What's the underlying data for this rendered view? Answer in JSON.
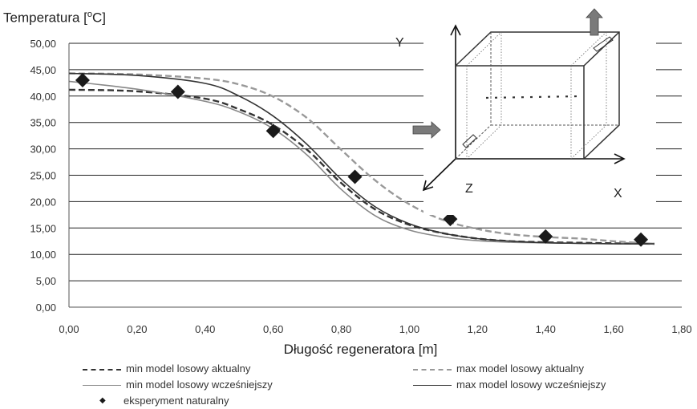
{
  "chart_data": {
    "type": "line",
    "ylabel": "Temperatura [",
    "ylabel_sup": "o",
    "ylabel_suffix": "C]",
    "xlabel": "Długość regeneratora [m]",
    "xlim": [
      0,
      1.8
    ],
    "ylim": [
      0,
      50
    ],
    "grid": "horizontal",
    "legend_position": "bottom",
    "x_ticks": [
      "0,00",
      "0,20",
      "0,40",
      "0,60",
      "0,80",
      "1,00",
      "1,20",
      "1,40",
      "1,60",
      "1,80"
    ],
    "y_ticks": [
      "0,00",
      "5,00",
      "10,00",
      "15,00",
      "20,00",
      "25,00",
      "30,00",
      "35,00",
      "40,00",
      "45,00",
      "50,00"
    ],
    "series": [
      {
        "name": "min model losowy aktualny",
        "style": "dashed",
        "color": "#333333",
        "x": [
          0.0,
          0.2,
          0.4,
          0.5,
          0.6,
          0.7,
          0.8,
          0.9,
          1.0,
          1.1,
          1.2,
          1.3,
          1.4,
          1.5,
          1.6,
          1.72
        ],
        "y": [
          41.2,
          40.9,
          39.5,
          37.5,
          34.5,
          29.8,
          23.5,
          18.5,
          15.6,
          14.0,
          13.0,
          12.5,
          12.3,
          12.2,
          12.1,
          12.0
        ]
      },
      {
        "name": "max model losowy aktualny",
        "style": "dashed",
        "color": "#999999",
        "x": [
          0.0,
          0.2,
          0.4,
          0.5,
          0.6,
          0.7,
          0.8,
          0.9,
          1.0,
          1.1,
          1.2,
          1.3,
          1.4,
          1.5,
          1.6,
          1.72
        ],
        "y": [
          44.3,
          44.1,
          43.3,
          42.2,
          39.9,
          35.8,
          29.8,
          24.0,
          19.5,
          16.5,
          14.8,
          13.8,
          13.3,
          13.0,
          12.5,
          12.0
        ]
      },
      {
        "name": "min model losowy wcześniejszy",
        "style": "solid",
        "color": "#888888",
        "x": [
          0.0,
          0.2,
          0.4,
          0.5,
          0.6,
          0.7,
          0.8,
          0.9,
          1.0,
          1.1,
          1.2,
          1.3,
          1.4,
          1.5,
          1.6,
          1.72
        ],
        "y": [
          42.8,
          41.3,
          39.0,
          37.0,
          33.8,
          28.8,
          22.3,
          17.3,
          14.6,
          13.3,
          12.6,
          12.3,
          12.2,
          12.1,
          12.0,
          12.0
        ]
      },
      {
        "name": "max model losowy wcześniejszy",
        "style": "solid",
        "color": "#333333",
        "x": [
          0.0,
          0.2,
          0.4,
          0.5,
          0.6,
          0.7,
          0.8,
          0.9,
          1.0,
          1.1,
          1.2,
          1.3,
          1.4,
          1.5,
          1.6,
          1.72
        ],
        "y": [
          44.3,
          43.9,
          42.4,
          40.0,
          36.2,
          30.8,
          24.2,
          19.0,
          15.8,
          14.0,
          13.0,
          12.5,
          12.2,
          12.1,
          12.0,
          12.0
        ]
      },
      {
        "name": "eksperyment naturalny",
        "style": "marker",
        "color": "#1a1a1a",
        "x": [
          0.04,
          0.32,
          0.6,
          0.84,
          1.12,
          1.4,
          1.68
        ],
        "y": [
          43.0,
          40.8,
          33.4,
          24.7,
          16.7,
          13.4,
          12.8
        ]
      }
    ],
    "inset_labels": {
      "y": "Y",
      "z": "Z",
      "x": "X"
    }
  }
}
